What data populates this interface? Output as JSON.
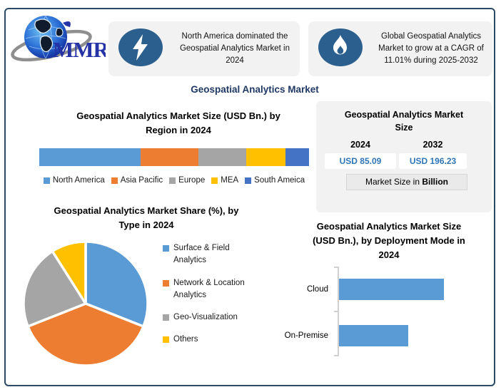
{
  "frame": {
    "border_color": "#2C4A66"
  },
  "logo": {
    "text": "MMR"
  },
  "callouts": [
    {
      "icon": "lightning-icon",
      "text": "North America dominated the Geospatial Analytics Market in 2024"
    },
    {
      "icon": "flame-icon",
      "text": "Global Geospatial Analytics Market to grow at a CAGR of 11.01% during 2025-2032"
    }
  ],
  "main_title": "Geospatial Analytics Market",
  "region_section": {
    "title_lines": [
      "Geospatial Analytics Market Size (USD Bn.) by",
      "Region in 2024"
    ]
  },
  "market_size_card": {
    "title": "Geospatial Analytics Market Size",
    "year_left": "2024",
    "year_right": "2032",
    "value_left": "USD 85.09",
    "value_right": "USD 196.23",
    "value_color": "#2E75B6",
    "footer_prefix": "Market Size in ",
    "footer_bold": "Billion"
  },
  "pie_section": {
    "title_lines": [
      "Geospatial Analytics Market Share (%), by",
      "Type in 2024"
    ]
  },
  "deployment_section": {
    "title_lines": [
      "Geospatial Analytics Market Size",
      "(USD Bn.), by Deployment Mode in",
      "2024"
    ]
  },
  "chart_data": [
    {
      "id": "region_stacked_bar",
      "type": "bar",
      "subtype": "stacked-horizontal",
      "title": "Geospatial Analytics Market Size (USD Bn.) by Region in 2024",
      "categories": [
        "North America",
        "Asia Pacific",
        "Europe",
        "MEA",
        "South Ameica"
      ],
      "values_pct": [
        37.5,
        21.4,
        17.8,
        14.6,
        8.7
      ],
      "colors": [
        "#5B9BD5",
        "#ED7D31",
        "#A5A5A5",
        "#FFC000",
        "#4472C4"
      ],
      "legend_position": "bottom",
      "value_labels_visible": false
    },
    {
      "id": "type_share_pie",
      "type": "pie",
      "title": "Geospatial Analytics Market Share (%), by Type in 2024",
      "labels": [
        "Surface & Field Analytics",
        "Network & Location Analytics",
        "Geo-Visualization",
        "Others"
      ],
      "values_pct": [
        31,
        38,
        22,
        9
      ],
      "colors": [
        "#5B9BD5",
        "#ED7D31",
        "#A5A5A5",
        "#FFC000"
      ],
      "start_angle_deg": 0,
      "direction": "clockwise",
      "legend_position": "right",
      "value_labels_visible": false
    },
    {
      "id": "deployment_bar",
      "type": "bar",
      "subtype": "horizontal",
      "title": "Geospatial Analytics Market Size (USD Bn.), by Deployment Mode in 2024",
      "categories": [
        "Cloud",
        "On-Premise"
      ],
      "values_pct_of_axis": [
        68,
        45
      ],
      "bar_color": "#5B9BD5",
      "axis_tick_labels_visible": false,
      "value_labels_visible": false
    }
  ]
}
